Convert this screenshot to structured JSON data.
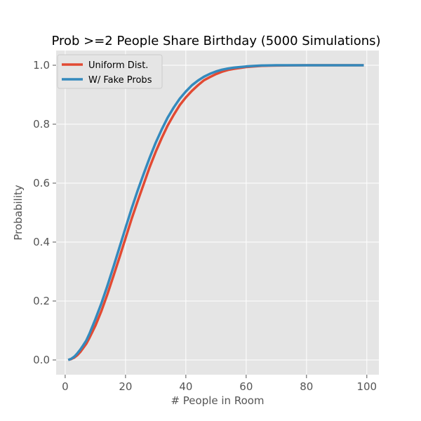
{
  "chart_data": {
    "type": "line",
    "title": "Prob >=2 People Share Birthday (5000 Simulations)",
    "xlabel": "# People in Room",
    "ylabel": "Probability",
    "xlim": [
      -3,
      104
    ],
    "ylim": [
      -0.05,
      1.05
    ],
    "xticks": [
      0,
      20,
      40,
      60,
      80,
      100
    ],
    "yticks": [
      0.0,
      0.2,
      0.4,
      0.6,
      0.8,
      1.0
    ],
    "ytick_labels": [
      "0.0",
      "0.2",
      "0.4",
      "0.6",
      "0.8",
      "1.0"
    ],
    "grid": true,
    "legend": "top-left",
    "series": [
      {
        "name": "Uniform Dist.",
        "color": "#e24a33",
        "x": [
          1,
          2,
          3,
          4,
          5,
          6,
          7,
          8,
          9,
          10,
          12,
          14,
          16,
          18,
          20,
          22,
          24,
          26,
          28,
          30,
          32,
          34,
          36,
          38,
          40,
          42,
          44,
          46,
          48,
          50,
          52,
          54,
          56,
          58,
          60,
          65,
          70,
          80,
          90,
          99
        ],
        "y": [
          0.0,
          0.003,
          0.008,
          0.016,
          0.027,
          0.041,
          0.055,
          0.074,
          0.095,
          0.116,
          0.166,
          0.223,
          0.285,
          0.348,
          0.413,
          0.478,
          0.538,
          0.596,
          0.654,
          0.706,
          0.753,
          0.796,
          0.832,
          0.865,
          0.891,
          0.913,
          0.932,
          0.949,
          0.96,
          0.97,
          0.978,
          0.984,
          0.988,
          0.991,
          0.994,
          0.998,
          0.999,
          1.0,
          1.0,
          1.0
        ]
      },
      {
        "name": "W/ Fake Probs",
        "color": "#348abd",
        "x": [
          1,
          2,
          3,
          4,
          5,
          6,
          7,
          8,
          9,
          10,
          12,
          14,
          16,
          18,
          20,
          22,
          24,
          26,
          28,
          30,
          32,
          34,
          36,
          38,
          40,
          42,
          44,
          46,
          48,
          50,
          52,
          54,
          56,
          58,
          60,
          65,
          70,
          80,
          90,
          99
        ],
        "y": [
          0.0,
          0.004,
          0.011,
          0.022,
          0.035,
          0.05,
          0.066,
          0.088,
          0.113,
          0.138,
          0.192,
          0.252,
          0.316,
          0.382,
          0.448,
          0.513,
          0.574,
          0.631,
          0.686,
          0.737,
          0.782,
          0.823,
          0.857,
          0.887,
          0.911,
          0.932,
          0.948,
          0.961,
          0.971,
          0.979,
          0.985,
          0.989,
          0.992,
          0.994,
          0.996,
          0.999,
          1.0,
          1.0,
          1.0,
          1.0
        ]
      }
    ]
  }
}
